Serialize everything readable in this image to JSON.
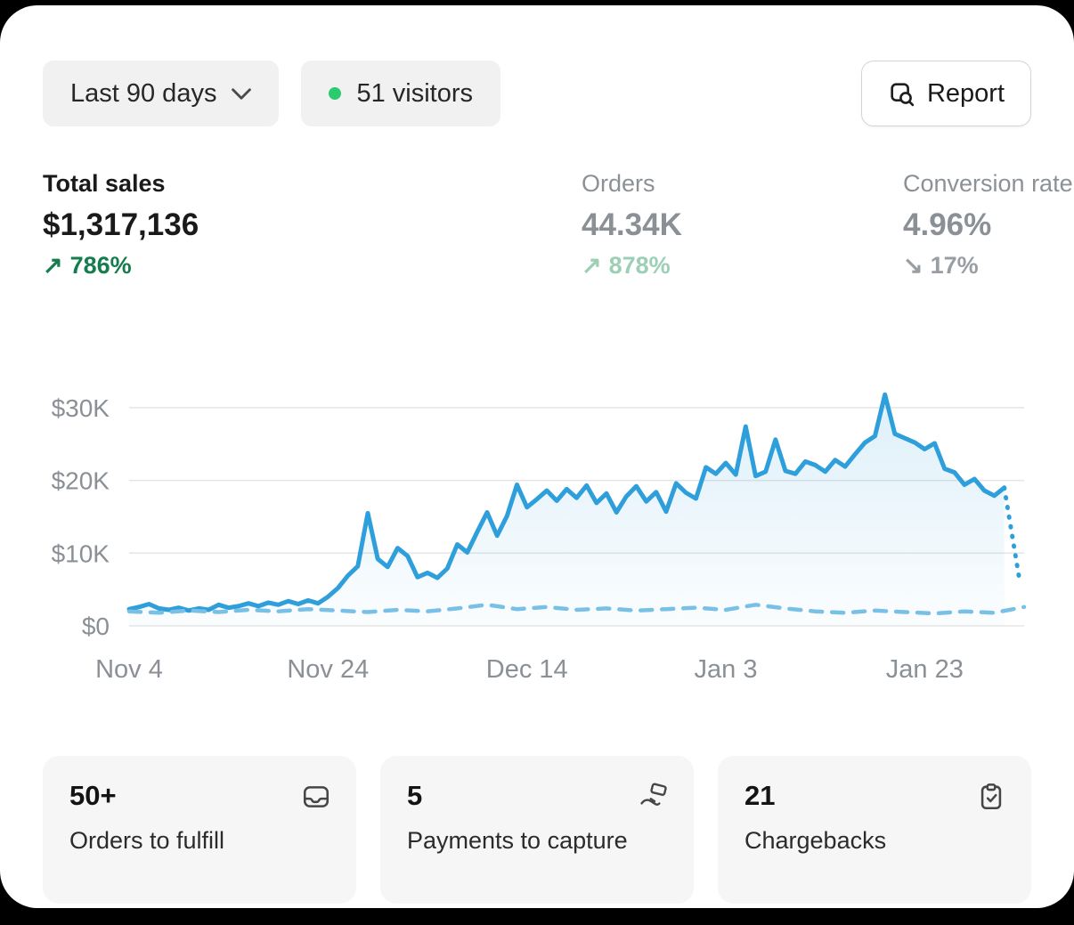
{
  "header": {
    "date_range": {
      "label": "Last 90 days"
    },
    "visitors": {
      "label": "51 visitors",
      "dot_color": "#2BCB70"
    },
    "report": {
      "label": "Report"
    }
  },
  "metrics": [
    {
      "label": "Total sales",
      "value": "$1,317,136",
      "arrow": "↗",
      "delta": "786%",
      "trend": "up"
    },
    {
      "label": "Orders",
      "value": "44.34K",
      "arrow": "↗",
      "delta": "878%",
      "trend": "up"
    },
    {
      "label": "Conversion rate",
      "value": "4.96%",
      "arrow": "↘",
      "delta": "17%",
      "trend": "down"
    }
  ],
  "chart_data": {
    "type": "line",
    "unit": "USD thousands per day",
    "ylim": [
      0,
      33
    ],
    "yticks": [
      "$0",
      "$10K",
      "$20K",
      "$30K"
    ],
    "ytick_values": [
      0,
      10,
      20,
      30
    ],
    "xticks": [
      "Nov 4",
      "Nov 24",
      "Dec 14",
      "Jan 3",
      "Jan 23"
    ],
    "xtick_positions": [
      0,
      20,
      40,
      60,
      80
    ],
    "x_max": 90,
    "grid": "horizontal",
    "legend": "none",
    "series": [
      {
        "name": "current-period",
        "style": "solid",
        "color": "#2E9FDA",
        "width": 5,
        "area": true,
        "values": [
          2.3,
          2.6,
          3.0,
          2.4,
          2.2,
          2.5,
          2.1,
          2.4,
          2.2,
          2.9,
          2.5,
          2.7,
          3.1,
          2.7,
          3.2,
          2.9,
          3.4,
          3.0,
          3.5,
          3.1,
          4.0,
          5.2,
          6.9,
          8.2,
          15.5,
          9.2,
          8.1,
          10.7,
          9.6,
          6.7,
          7.3,
          6.6,
          7.9,
          11.2,
          10.1,
          12.9,
          15.6,
          12.4,
          15.1,
          19.4,
          16.3,
          17.4,
          18.6,
          17.2,
          18.8,
          17.6,
          19.3,
          16.9,
          18.2,
          15.6,
          17.8,
          19.2,
          17.1,
          18.4,
          15.7,
          19.6,
          18.3,
          17.5,
          21.8,
          20.9,
          22.4,
          20.8,
          27.4,
          20.6,
          21.2,
          25.6,
          21.3,
          20.9,
          22.6,
          22.1,
          21.2,
          22.8,
          21.9,
          23.6,
          25.2,
          26.1,
          31.8,
          26.4,
          25.8,
          25.2,
          24.3,
          25.1,
          21.6,
          21.1,
          19.4,
          20.2,
          18.6,
          17.9,
          19.0
        ]
      },
      {
        "name": "projection",
        "style": "dotted",
        "color": "#2E9FDA",
        "width": 5,
        "x": [
          88,
          89.6
        ],
        "values": [
          19.0,
          5.8
        ]
      },
      {
        "name": "previous-period",
        "style": "dashed",
        "color": "#79C0E6",
        "width": 4.5,
        "x": [
          0,
          3,
          6,
          9,
          12,
          15,
          18,
          21,
          24,
          27,
          30,
          33,
          36,
          39,
          42,
          45,
          48,
          51,
          54,
          57,
          60,
          63,
          66,
          69,
          72,
          75,
          78,
          81,
          84,
          87,
          90
        ],
        "values": [
          2.0,
          1.8,
          2.1,
          1.9,
          2.2,
          2.0,
          2.3,
          2.1,
          1.9,
          2.2,
          2.0,
          2.4,
          2.9,
          2.3,
          2.6,
          2.2,
          2.4,
          2.1,
          2.3,
          2.5,
          2.2,
          2.9,
          2.4,
          2.0,
          1.8,
          2.1,
          1.9,
          1.7,
          2.0,
          1.8,
          2.6
        ]
      }
    ]
  },
  "cards": [
    {
      "value": "50+",
      "label": "Orders to fulfill",
      "icon": "inbox-icon"
    },
    {
      "value": "5",
      "label": "Payments to capture",
      "icon": "payment-capture-icon"
    },
    {
      "value": "21",
      "label": "Chargebacks",
      "icon": "clipboard-check-icon"
    }
  ],
  "colors": {
    "accent_blue": "#2E9FDA",
    "dashed_blue": "#79C0E6",
    "green_strong": "#157D4D",
    "green_soft": "#9CCFB5",
    "muted_text": "#8A9095",
    "pill_bg": "#F1F1F1",
    "card_bg": "#F6F6F6",
    "dot_green": "#2BCB70"
  }
}
